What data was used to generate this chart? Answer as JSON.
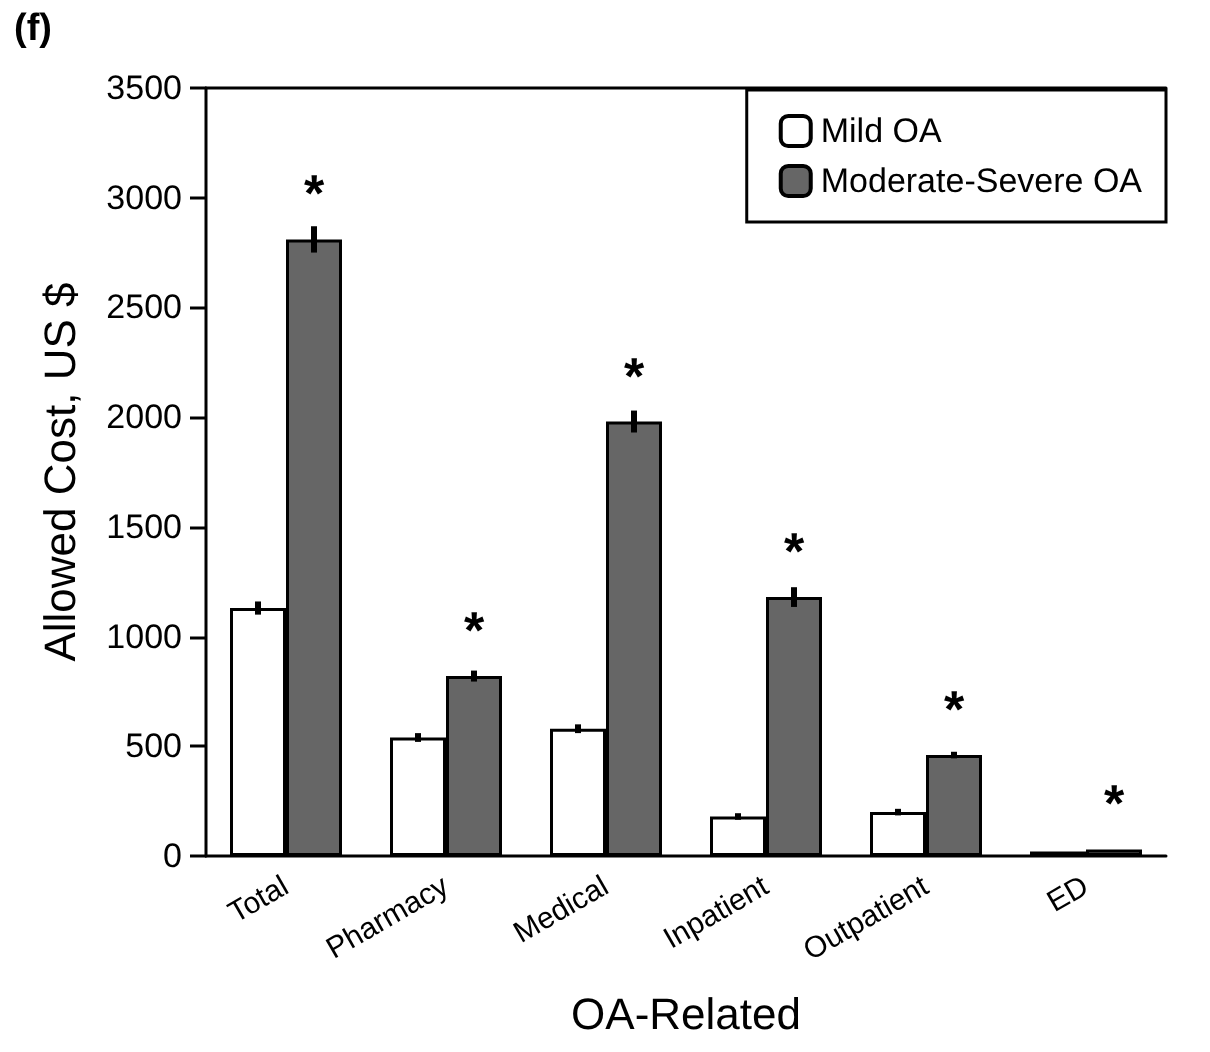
{
  "chart_data": {
    "type": "bar",
    "title": "(f)",
    "xlabel": "OA-Related",
    "ylabel": "Allowed Cost, US $",
    "categories": [
      "Total",
      "Pharmacy",
      "Medical",
      "Inpatient",
      "Outpatient",
      "ED"
    ],
    "series": [
      {
        "name": "Mild OA",
        "color": "#ffffff",
        "values": [
          1130,
          540,
          580,
          180,
          200,
          20
        ],
        "errors": [
          30,
          20,
          20,
          15,
          15,
          null
        ]
      },
      {
        "name": "Moderate-Severe OA",
        "color": "#666666",
        "values": [
          2810,
          820,
          1980,
          1180,
          460,
          30
        ],
        "errors": [
          60,
          25,
          50,
          45,
          15,
          null
        ]
      }
    ],
    "annotations": [
      {
        "text": "*",
        "x": "Total",
        "y": 2810
      },
      {
        "text": "*",
        "x": "Pharmacy",
        "y": 820
      },
      {
        "text": "*",
        "x": "Medical",
        "y": 1980
      },
      {
        "text": "*",
        "x": "Inpatient",
        "y": 1180
      },
      {
        "text": "*",
        "x": "Outpatient",
        "y": 460
      },
      {
        "text": "*",
        "x": "ED",
        "y": 30
      }
    ],
    "ylim": [
      0,
      3500
    ],
    "yticks": [
      0,
      500,
      1000,
      1500,
      2000,
      2500,
      3000,
      3500
    ],
    "grid": false,
    "legend": "top right"
  }
}
